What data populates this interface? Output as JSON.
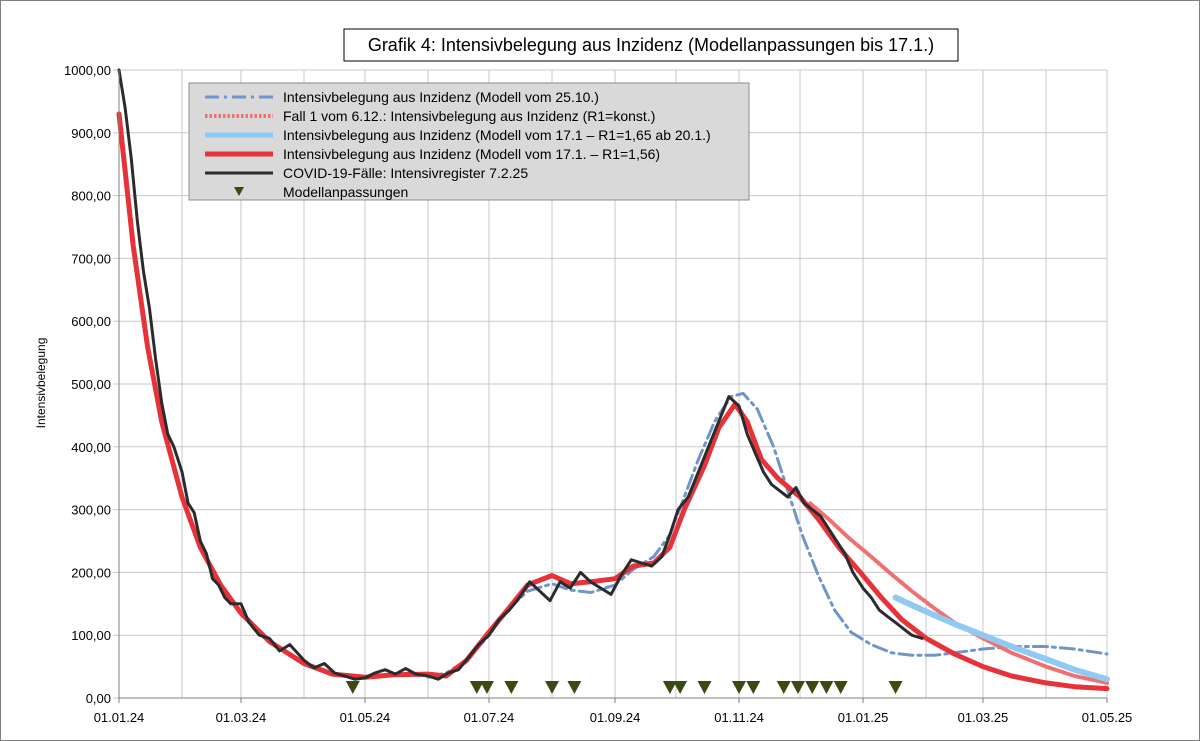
{
  "chart_data": {
    "type": "line",
    "title": "Grafik 4: Intensivbelegung aus Inzidenz (Modellanpassungen bis 17.1.)",
    "ylabel": "Intensivbelegung",
    "xlabel": "",
    "ylim": [
      0,
      1000
    ],
    "xlim": [
      "2024-01-01",
      "2025-05-01"
    ],
    "y_ticks": [
      "0,00",
      "100,00",
      "200,00",
      "300,00",
      "400,00",
      "500,00",
      "600,00",
      "700,00",
      "800,00",
      "900,00",
      "1000,00"
    ],
    "x_ticks": [
      {
        "date": "2024-01-01",
        "label": "01.01.24"
      },
      {
        "date": "2024-03-01",
        "label": "01.03.24"
      },
      {
        "date": "2024-05-01",
        "label": "01.05.24"
      },
      {
        "date": "2024-07-01",
        "label": "01.07.24"
      },
      {
        "date": "2024-09-01",
        "label": "01.09.24"
      },
      {
        "date": "2024-11-01",
        "label": "01.11.24"
      },
      {
        "date": "2025-01-01",
        "label": "01.01.25"
      },
      {
        "date": "2025-03-01",
        "label": "01.03.25"
      },
      {
        "date": "2025-05-01",
        "label": "01.05.25"
      }
    ],
    "grid": true,
    "legend_position": "top-left",
    "series": [
      {
        "name": "Intensivbelegung aus Inzidenz (Modell vom 25.10.)",
        "color": "#6f96c8",
        "style": "dashdot",
        "points": [
          [
            "2024-06-01",
            33
          ],
          [
            "2024-06-10",
            40
          ],
          [
            "2024-06-20",
            60
          ],
          [
            "2024-07-01",
            100
          ],
          [
            "2024-07-10",
            140
          ],
          [
            "2024-07-20",
            170
          ],
          [
            "2024-08-01",
            182
          ],
          [
            "2024-08-10",
            172
          ],
          [
            "2024-08-20",
            168
          ],
          [
            "2024-09-01",
            180
          ],
          [
            "2024-09-10",
            205
          ],
          [
            "2024-09-20",
            225
          ],
          [
            "2024-09-28",
            260
          ],
          [
            "2024-10-05",
            320
          ],
          [
            "2024-10-12",
            380
          ],
          [
            "2024-10-20",
            440
          ],
          [
            "2024-10-28",
            480
          ],
          [
            "2024-11-03",
            485
          ],
          [
            "2024-11-10",
            460
          ],
          [
            "2024-11-18",
            400
          ],
          [
            "2024-11-25",
            330
          ],
          [
            "2024-12-02",
            260
          ],
          [
            "2024-12-10",
            195
          ],
          [
            "2024-12-18",
            140
          ],
          [
            "2024-12-26",
            105
          ],
          [
            "2025-01-05",
            85
          ],
          [
            "2025-01-15",
            72
          ],
          [
            "2025-01-25",
            68
          ],
          [
            "2025-02-05",
            68
          ],
          [
            "2025-02-15",
            72
          ],
          [
            "2025-03-01",
            78
          ],
          [
            "2025-03-15",
            82
          ],
          [
            "2025-04-01",
            82
          ],
          [
            "2025-04-15",
            78
          ],
          [
            "2025-05-01",
            70
          ]
        ]
      },
      {
        "name": "Fall 1 vom 6.12.: Intensivbelegung aus Inzidenz (R1=konst.)",
        "color": "#f07070",
        "style": "dotted",
        "points": [
          [
            "2024-12-06",
            310
          ],
          [
            "2024-12-15",
            285
          ],
          [
            "2024-12-25",
            255
          ],
          [
            "2025-01-05",
            225
          ],
          [
            "2025-01-15",
            197
          ],
          [
            "2025-01-25",
            170
          ],
          [
            "2025-02-05",
            143
          ],
          [
            "2025-02-15",
            120
          ],
          [
            "2025-03-01",
            95
          ],
          [
            "2025-03-15",
            72
          ],
          [
            "2025-04-01",
            50
          ],
          [
            "2025-04-15",
            35
          ],
          [
            "2025-05-01",
            24
          ]
        ]
      },
      {
        "name": "Intensivbelegung aus Inzidenz (Modell vom 17.1 – R1=1,65 ab 20.1.)",
        "color": "#8fcaf5",
        "style": "solid",
        "points": [
          [
            "2025-01-17",
            160
          ],
          [
            "2025-01-25",
            148
          ],
          [
            "2025-02-05",
            132
          ],
          [
            "2025-02-15",
            118
          ],
          [
            "2025-03-01",
            100
          ],
          [
            "2025-03-15",
            82
          ],
          [
            "2025-04-01",
            62
          ],
          [
            "2025-04-15",
            45
          ],
          [
            "2025-05-01",
            30
          ]
        ]
      },
      {
        "name": "Intensivbelegung aus Inzidenz (Modell vom 17.1. – R1=1,56)",
        "color": "#e8323a",
        "style": "solid",
        "points": [
          [
            "2024-01-01",
            930
          ],
          [
            "2024-01-08",
            720
          ],
          [
            "2024-01-15",
            560
          ],
          [
            "2024-01-22",
            440
          ],
          [
            "2024-02-01",
            320
          ],
          [
            "2024-02-10",
            240
          ],
          [
            "2024-02-20",
            180
          ],
          [
            "2024-03-01",
            135
          ],
          [
            "2024-03-15",
            90
          ],
          [
            "2024-04-01",
            55
          ],
          [
            "2024-04-15",
            38
          ],
          [
            "2024-05-01",
            33
          ],
          [
            "2024-05-15",
            37
          ],
          [
            "2024-06-01",
            38
          ],
          [
            "2024-06-10",
            35
          ],
          [
            "2024-06-20",
            60
          ],
          [
            "2024-07-01",
            105
          ],
          [
            "2024-07-10",
            140
          ],
          [
            "2024-07-20",
            180
          ],
          [
            "2024-08-01",
            195
          ],
          [
            "2024-08-10",
            182
          ],
          [
            "2024-08-20",
            185
          ],
          [
            "2024-09-01",
            190
          ],
          [
            "2024-09-10",
            210
          ],
          [
            "2024-09-20",
            215
          ],
          [
            "2024-09-28",
            240
          ],
          [
            "2024-10-05",
            300
          ],
          [
            "2024-10-15",
            370
          ],
          [
            "2024-10-22",
            430
          ],
          [
            "2024-10-30",
            468
          ],
          [
            "2024-11-05",
            440
          ],
          [
            "2024-11-12",
            380
          ],
          [
            "2024-11-20",
            350
          ],
          [
            "2024-12-01",
            320
          ],
          [
            "2024-12-10",
            285
          ],
          [
            "2024-12-20",
            240
          ],
          [
            "2025-01-01",
            195
          ],
          [
            "2025-01-10",
            160
          ],
          [
            "2025-01-20",
            125
          ],
          [
            "2025-02-01",
            95
          ],
          [
            "2025-02-15",
            70
          ],
          [
            "2025-03-01",
            50
          ],
          [
            "2025-03-15",
            35
          ],
          [
            "2025-04-01",
            24
          ],
          [
            "2025-04-15",
            18
          ],
          [
            "2025-05-01",
            15
          ]
        ]
      },
      {
        "name": "COVID-19-Fälle: Intensivregister 7.2.25",
        "color": "#2b2b2b",
        "style": "solid",
        "points": [
          [
            "2024-01-01",
            1000
          ],
          [
            "2024-01-04",
            940
          ],
          [
            "2024-01-07",
            860
          ],
          [
            "2024-01-10",
            760
          ],
          [
            "2024-01-13",
            680
          ],
          [
            "2024-01-16",
            620
          ],
          [
            "2024-01-19",
            540
          ],
          [
            "2024-01-22",
            470
          ],
          [
            "2024-01-25",
            420
          ],
          [
            "2024-01-28",
            400
          ],
          [
            "2024-02-01",
            360
          ],
          [
            "2024-02-04",
            310
          ],
          [
            "2024-02-07",
            295
          ],
          [
            "2024-02-10",
            250
          ],
          [
            "2024-02-13",
            230
          ],
          [
            "2024-02-16",
            190
          ],
          [
            "2024-02-19",
            180
          ],
          [
            "2024-02-22",
            160
          ],
          [
            "2024-02-25",
            150
          ],
          [
            "2024-03-01",
            150
          ],
          [
            "2024-03-05",
            120
          ],
          [
            "2024-03-10",
            100
          ],
          [
            "2024-03-15",
            95
          ],
          [
            "2024-03-20",
            75
          ],
          [
            "2024-03-25",
            85
          ],
          [
            "2024-04-01",
            60
          ],
          [
            "2024-04-06",
            48
          ],
          [
            "2024-04-11",
            55
          ],
          [
            "2024-04-16",
            40
          ],
          [
            "2024-04-21",
            35
          ],
          [
            "2024-04-26",
            30
          ],
          [
            "2024-05-01",
            32
          ],
          [
            "2024-05-06",
            40
          ],
          [
            "2024-05-11",
            45
          ],
          [
            "2024-05-16",
            38
          ],
          [
            "2024-05-21",
            47
          ],
          [
            "2024-05-26",
            38
          ],
          [
            "2024-06-01",
            35
          ],
          [
            "2024-06-06",
            30
          ],
          [
            "2024-06-11",
            40
          ],
          [
            "2024-06-16",
            45
          ],
          [
            "2024-06-21",
            65
          ],
          [
            "2024-06-26",
            85
          ],
          [
            "2024-07-01",
            100
          ],
          [
            "2024-07-06",
            125
          ],
          [
            "2024-07-11",
            140
          ],
          [
            "2024-07-16",
            160
          ],
          [
            "2024-07-21",
            185
          ],
          [
            "2024-07-26",
            170
          ],
          [
            "2024-07-31",
            155
          ],
          [
            "2024-08-05",
            185
          ],
          [
            "2024-08-10",
            175
          ],
          [
            "2024-08-15",
            200
          ],
          [
            "2024-08-20",
            185
          ],
          [
            "2024-08-25",
            175
          ],
          [
            "2024-08-30",
            165
          ],
          [
            "2024-09-04",
            195
          ],
          [
            "2024-09-09",
            220
          ],
          [
            "2024-09-14",
            215
          ],
          [
            "2024-09-19",
            210
          ],
          [
            "2024-09-24",
            225
          ],
          [
            "2024-09-28",
            260
          ],
          [
            "2024-10-02",
            300
          ],
          [
            "2024-10-07",
            320
          ],
          [
            "2024-10-12",
            360
          ],
          [
            "2024-10-17",
            400
          ],
          [
            "2024-10-22",
            440
          ],
          [
            "2024-10-27",
            480
          ],
          [
            "2024-11-01",
            465
          ],
          [
            "2024-11-05",
            420
          ],
          [
            "2024-11-09",
            390
          ],
          [
            "2024-11-13",
            360
          ],
          [
            "2024-11-17",
            340
          ],
          [
            "2024-11-21",
            330
          ],
          [
            "2024-11-25",
            320
          ],
          [
            "2024-11-29",
            335
          ],
          [
            "2024-12-03",
            310
          ],
          [
            "2024-12-07",
            300
          ],
          [
            "2024-12-11",
            290
          ],
          [
            "2024-12-15",
            270
          ],
          [
            "2024-12-19",
            250
          ],
          [
            "2024-12-23",
            230
          ],
          [
            "2024-12-27",
            200
          ],
          [
            "2025-01-01",
            175
          ],
          [
            "2025-01-05",
            160
          ],
          [
            "2025-01-09",
            140
          ],
          [
            "2025-01-13",
            130
          ],
          [
            "2025-01-17",
            120
          ],
          [
            "2025-01-21",
            110
          ],
          [
            "2025-01-25",
            100
          ],
          [
            "2025-01-30",
            95
          ]
        ]
      }
    ],
    "markers": {
      "name": "Modellanpassungen",
      "color": "#3b4a12",
      "dates": [
        "2024-04-25",
        "2024-06-25",
        "2024-06-30",
        "2024-07-12",
        "2024-08-01",
        "2024-08-12",
        "2024-09-28",
        "2024-10-03",
        "2024-10-15",
        "2024-11-01",
        "2024-11-08",
        "2024-11-23",
        "2024-11-30",
        "2024-12-07",
        "2024-12-14",
        "2024-12-21",
        "2025-01-17"
      ]
    }
  }
}
